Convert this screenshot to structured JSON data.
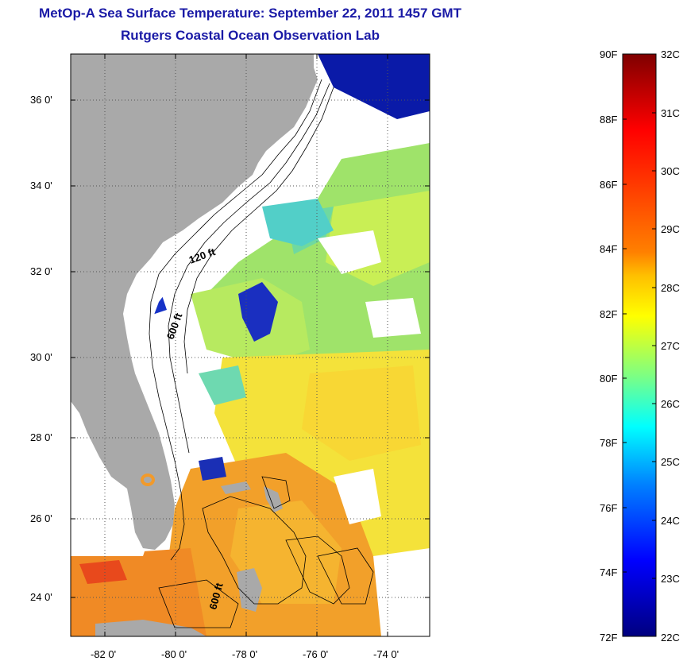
{
  "header": {
    "title": "MetOp-A Sea Surface Temperature:  September 22, 2011 1457 GMT",
    "subtitle": "Rutgers Coastal Ocean Observation Lab"
  },
  "map": {
    "lat_ticks": [
      "36 0'",
      "34 0'",
      "32 0'",
      "30 0'",
      "28 0'",
      "26 0'",
      "24 0'"
    ],
    "lon_ticks": [
      "-82 0'",
      "-80 0'",
      "-78 0'",
      "-76 0'",
      "-74 0'"
    ],
    "isobath_labels": [
      "120 ft",
      "600 ft",
      "600 ft"
    ],
    "land_color": "#a9a9a9",
    "cloud_color": "#ffffff"
  },
  "colorbar": {
    "fahrenheit_labels": [
      "90F",
      "88F",
      "86F",
      "84F",
      "82F",
      "80F",
      "78F",
      "76F",
      "74F",
      "72F"
    ],
    "celsius_labels": [
      "32C",
      "31C",
      "30C",
      "29C",
      "28C",
      "27C",
      "26C",
      "25C",
      "24C",
      "23C",
      "22C"
    ],
    "colors": [
      "#7f0000",
      "#ff0000",
      "#ff8000",
      "#ffff00",
      "#80ff80",
      "#00ffff",
      "#0080ff",
      "#0000ff",
      "#00007f"
    ]
  }
}
